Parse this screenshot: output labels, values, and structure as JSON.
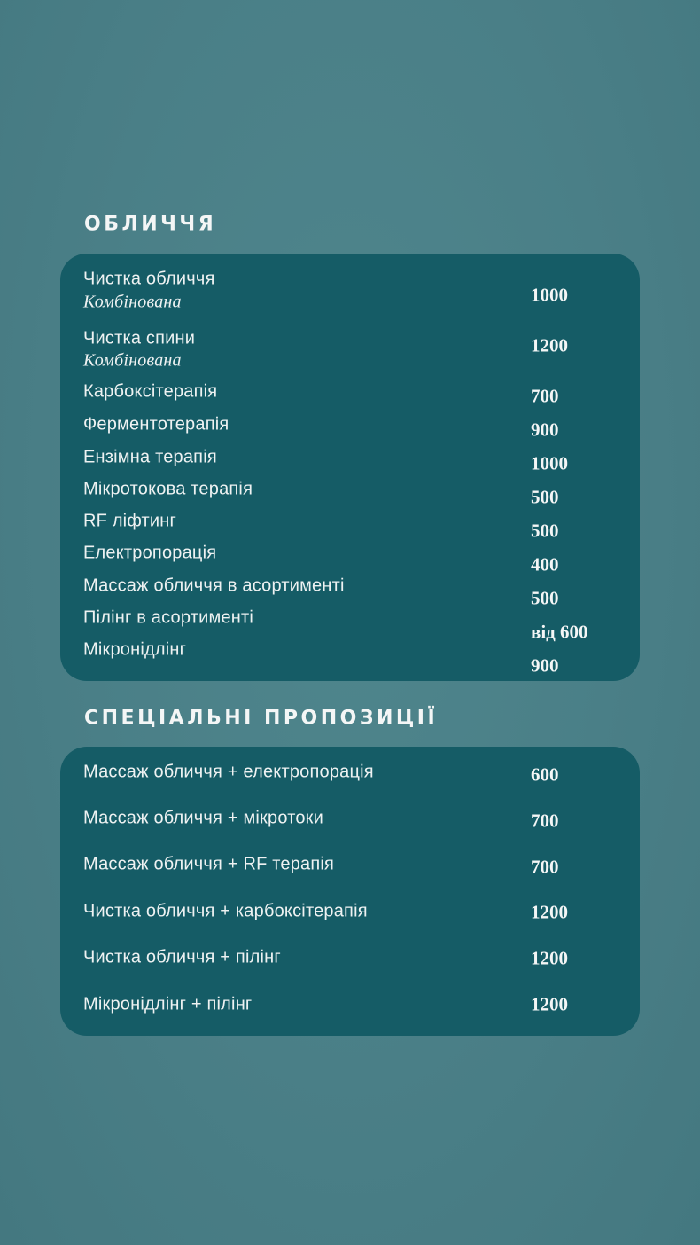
{
  "face": {
    "title": "ОБЛИЧЧЯ",
    "items": [
      {
        "name": "Чистка обличчя",
        "sub": "Комбінована",
        "price": "1000"
      },
      {
        "name": "Чистка спини",
        "sub": "Комбінована",
        "price": "1200"
      },
      {
        "name": "Карбоксітерапія",
        "price": "700"
      },
      {
        "name": "Ферментотерапія",
        "price": "900"
      },
      {
        "name": "Ензімна терапія",
        "price": "1000"
      },
      {
        "name": "Мікротокова терапія",
        "price": "500"
      },
      {
        "name": "RF ліфтинг",
        "price": "500"
      },
      {
        "name": "Електропорація",
        "price": "400"
      },
      {
        "name": "Массаж обличчя в асортименті",
        "price": "500"
      },
      {
        "name": "Пілінг в асортименті",
        "price": "від 600"
      },
      {
        "name": "Мікронідлінг",
        "price": "900"
      }
    ]
  },
  "special": {
    "title": "СПЕЦІАЛЬНІ ПРОПОЗИЦІЇ",
    "items": [
      {
        "name": "Массаж обличчя + електропорація",
        "price": "600"
      },
      {
        "name": "Массаж обличчя + мікротоки",
        "price": "700"
      },
      {
        "name": "Массаж обличчя + RF терапія",
        "price": "700"
      },
      {
        "name": "Чистка обличчя + карбоксітерапія",
        "price": "1200"
      },
      {
        "name": "Чистка обличчя + пілінг",
        "price": "1200"
      },
      {
        "name": "Мікронідлінг + пілінг",
        "price": "1200"
      }
    ]
  }
}
